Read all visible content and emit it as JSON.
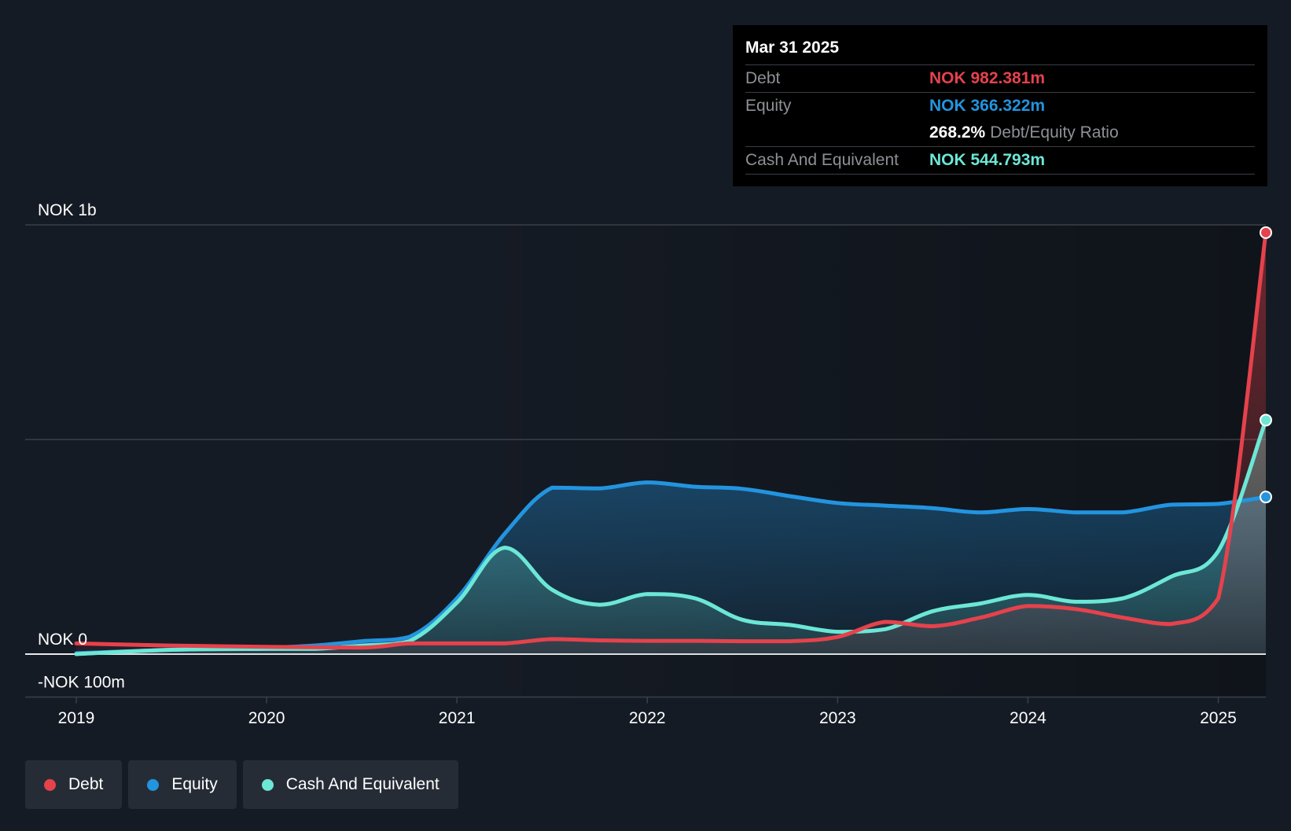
{
  "colors": {
    "background": "#151b24",
    "debt": "#e5424c",
    "equity": "#2394df",
    "cash": "#6ce7d6",
    "grid": "#3a4049",
    "text": "#ffffff",
    "muted": "#8d9096"
  },
  "tooltip": {
    "date": "Mar 31 2025",
    "debt_label": "Debt",
    "debt_value": "NOK 982.381m",
    "equity_label": "Equity",
    "equity_value": "NOK 366.322m",
    "ratio_value": "268.2%",
    "ratio_label": "Debt/Equity Ratio",
    "cash_label": "Cash And Equivalent",
    "cash_value": "NOK 544.793m"
  },
  "legend": [
    {
      "label": "Debt",
      "color": "#e5424c"
    },
    {
      "label": "Equity",
      "color": "#2394df"
    },
    {
      "label": "Cash And Equivalent",
      "color": "#6ce7d6"
    }
  ],
  "chart_data": {
    "type": "line",
    "title": "",
    "xlabel": "",
    "ylabel": "",
    "ylim": [
      -100,
      1000
    ],
    "xlim": [
      2019.0,
      2025.25
    ],
    "y_tick_labels": [
      {
        "value": 1000,
        "label": "NOK 1b"
      },
      {
        "value": 0,
        "label": "NOK 0"
      },
      {
        "value": -100,
        "label": "-NOK 100m"
      }
    ],
    "gridlines": [
      1000,
      500,
      0,
      -100
    ],
    "x_ticks": [
      {
        "value": 2019,
        "label": "2019"
      },
      {
        "value": 2020,
        "label": "2020"
      },
      {
        "value": 2021,
        "label": "2021"
      },
      {
        "value": 2022,
        "label": "2022"
      },
      {
        "value": 2023,
        "label": "2023"
      },
      {
        "value": 2024,
        "label": "2024"
      },
      {
        "value": 2025,
        "label": "2025"
      }
    ],
    "legend_position": "bottom-left",
    "series": [
      {
        "name": "Debt",
        "color": "#e5424c",
        "points": [
          [
            2019.0,
            25
          ],
          [
            2019.5,
            20
          ],
          [
            2020.0,
            17
          ],
          [
            2020.5,
            15
          ],
          [
            2020.75,
            25
          ],
          [
            2021.0,
            25
          ],
          [
            2021.25,
            25
          ],
          [
            2021.5,
            35
          ],
          [
            2021.75,
            32
          ],
          [
            2022.0,
            31
          ],
          [
            2022.25,
            31
          ],
          [
            2022.5,
            30
          ],
          [
            2022.75,
            30
          ],
          [
            2023.0,
            40
          ],
          [
            2023.25,
            75
          ],
          [
            2023.5,
            65
          ],
          [
            2023.75,
            85
          ],
          [
            2024.0,
            112
          ],
          [
            2024.25,
            105
          ],
          [
            2024.5,
            85
          ],
          [
            2024.75,
            70
          ],
          [
            2025.0,
            130
          ],
          [
            2025.25,
            982
          ]
        ]
      },
      {
        "name": "Equity",
        "color": "#2394df",
        "points": [
          [
            2019.0,
            2
          ],
          [
            2019.5,
            10
          ],
          [
            2020.0,
            15
          ],
          [
            2020.25,
            20
          ],
          [
            2020.5,
            30
          ],
          [
            2020.75,
            40
          ],
          [
            2021.0,
            130
          ],
          [
            2021.25,
            280
          ],
          [
            2021.5,
            388
          ],
          [
            2021.75,
            386
          ],
          [
            2022.0,
            400
          ],
          [
            2022.25,
            390
          ],
          [
            2022.5,
            385
          ],
          [
            2022.75,
            368
          ],
          [
            2023.0,
            352
          ],
          [
            2023.25,
            346
          ],
          [
            2023.5,
            340
          ],
          [
            2023.75,
            330
          ],
          [
            2024.0,
            338
          ],
          [
            2024.25,
            330
          ],
          [
            2024.5,
            330
          ],
          [
            2024.75,
            348
          ],
          [
            2025.0,
            350
          ],
          [
            2025.25,
            366
          ]
        ]
      },
      {
        "name": "Cash And Equivalent",
        "color": "#6ce7d6",
        "points": [
          [
            2019.0,
            0
          ],
          [
            2019.5,
            10
          ],
          [
            2020.0,
            12
          ],
          [
            2020.25,
            12
          ],
          [
            2020.5,
            20
          ],
          [
            2020.75,
            30
          ],
          [
            2021.0,
            120
          ],
          [
            2021.25,
            248
          ],
          [
            2021.5,
            150
          ],
          [
            2021.75,
            115
          ],
          [
            2022.0,
            140
          ],
          [
            2022.25,
            130
          ],
          [
            2022.5,
            80
          ],
          [
            2022.75,
            68
          ],
          [
            2023.0,
            52
          ],
          [
            2023.25,
            58
          ],
          [
            2023.5,
            100
          ],
          [
            2023.75,
            118
          ],
          [
            2024.0,
            138
          ],
          [
            2024.25,
            122
          ],
          [
            2024.5,
            130
          ],
          [
            2024.75,
            180
          ],
          [
            2025.0,
            240
          ],
          [
            2025.25,
            545
          ]
        ]
      }
    ]
  }
}
